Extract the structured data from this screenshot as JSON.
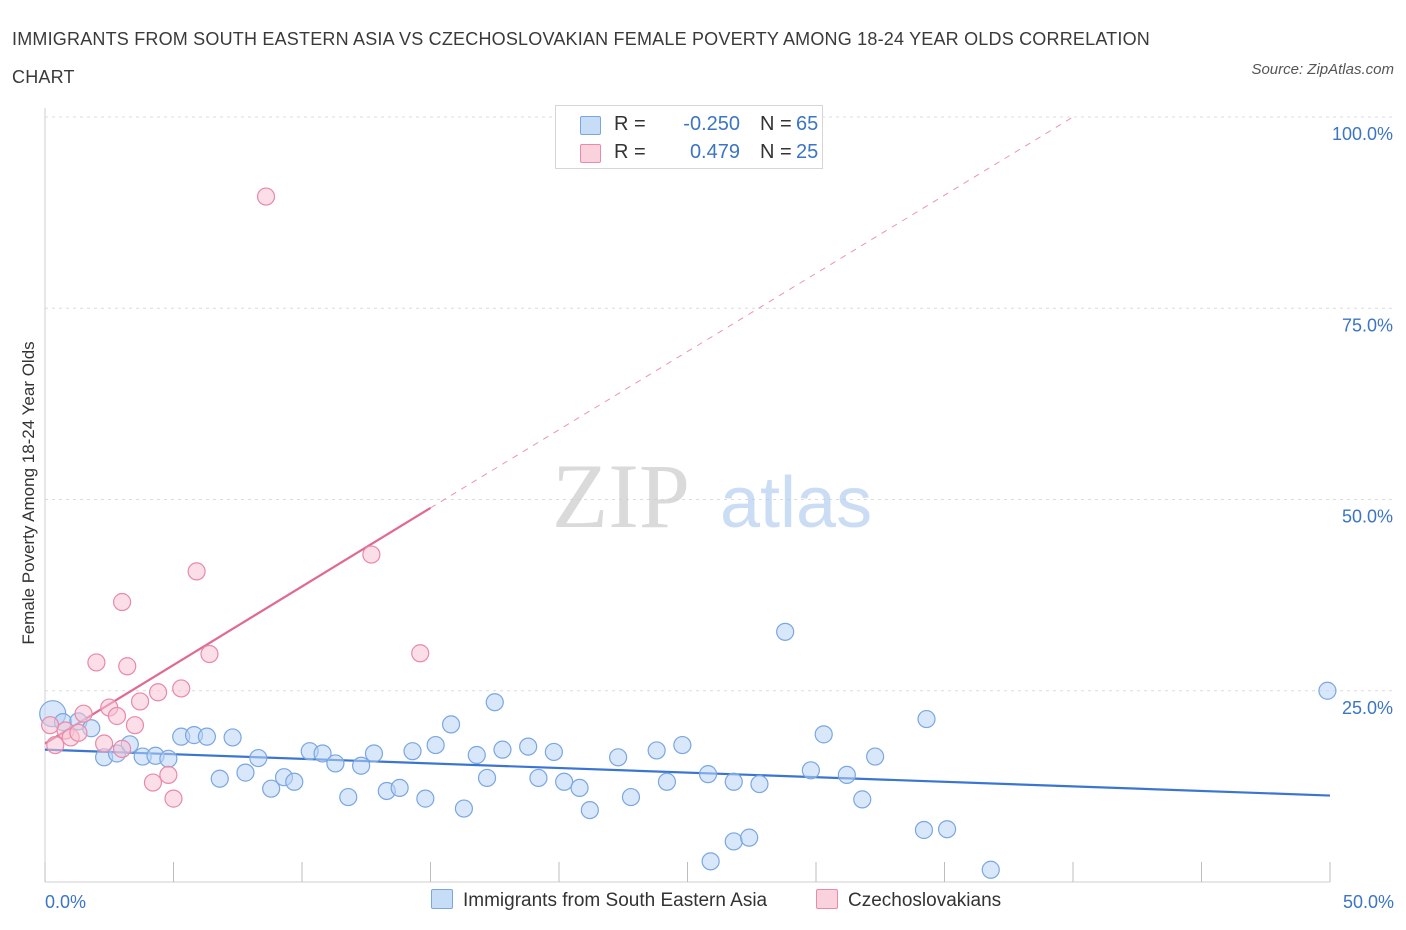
{
  "title": "IMMIGRANTS FROM SOUTH EASTERN ASIA VS CZECHOSLOVAKIAN FEMALE POVERTY AMONG 18-24 YEAR OLDS CORRELATION CHART",
  "source": "Source: ZipAtlas.com",
  "watermark": {
    "zip": "ZIP",
    "atlas": "atlas"
  },
  "colors": {
    "blue_fill": "#b9d3f5",
    "blue_stroke": "#7aa7e0",
    "blue_line": "#3b75d4",
    "pink_fill": "#f8c3d3",
    "pink_stroke": "#e88aa8",
    "pink_line": "#e06a90",
    "tick_text": "#3b75c4",
    "grid": "#dcdcdc"
  },
  "legend": {
    "rows": [
      {
        "series": "blue",
        "r_label": "R =",
        "r_value": "-0.250",
        "n_label": "N =",
        "n_value": "65"
      },
      {
        "series": "pink",
        "r_label": "R =",
        "r_value": "0.479",
        "n_label": "N =",
        "n_value": "25"
      }
    ]
  },
  "bottom_legend": [
    {
      "series": "blue",
      "label": "Immigrants from South Eastern Asia"
    },
    {
      "series": "pink",
      "label": "Czechoslovakians"
    }
  ],
  "chart_data": {
    "type": "scatter",
    "title": "IMMIGRANTS FROM SOUTH EASTERN ASIA VS CZECHOSLOVAKIAN FEMALE POVERTY AMONG 18-24 YEAR OLDS CORRELATION CHART",
    "xlabel": "",
    "ylabel": "Female Poverty Among 18-24 Year Olds",
    "xlim": [
      0,
      50
    ],
    "ylim": [
      0,
      100
    ],
    "x_tick_labels": [
      {
        "value": 0,
        "label": "0.0%"
      },
      {
        "value": 50,
        "label": "50.0%"
      }
    ],
    "y_tick_labels": [
      {
        "value": 100,
        "label": "100.0%"
      },
      {
        "value": 75,
        "label": "75.0%"
      },
      {
        "value": 50,
        "label": "50.0%"
      },
      {
        "value": 25,
        "label": "25.0%"
      }
    ],
    "grid": true,
    "legend_position": "top-center",
    "series": [
      {
        "name": "Immigrants from South Eastern Asia",
        "color": "#b9d3f5",
        "trend": {
          "x": [
            0,
            50
          ],
          "y": [
            17.3,
            11.3
          ],
          "r": -0.25,
          "n": 65
        },
        "points": [
          [
            0.3,
            22.0
          ],
          [
            0.7,
            20.9
          ],
          [
            1.3,
            21.0
          ],
          [
            1.8,
            20.1
          ],
          [
            2.3,
            16.3
          ],
          [
            2.8,
            16.8
          ],
          [
            3.3,
            18.0
          ],
          [
            3.8,
            16.4
          ],
          [
            4.3,
            16.5
          ],
          [
            4.8,
            16.1
          ],
          [
            5.3,
            19.0
          ],
          [
            5.8,
            19.2
          ],
          [
            6.3,
            19.0
          ],
          [
            6.8,
            13.5
          ],
          [
            7.3,
            18.9
          ],
          [
            7.8,
            14.3
          ],
          [
            8.3,
            16.2
          ],
          [
            8.8,
            12.2
          ],
          [
            9.3,
            13.7
          ],
          [
            9.7,
            13.1
          ],
          [
            10.3,
            17.1
          ],
          [
            10.8,
            16.8
          ],
          [
            11.3,
            15.5
          ],
          [
            11.8,
            11.1
          ],
          [
            12.3,
            15.2
          ],
          [
            12.8,
            16.8
          ],
          [
            13.3,
            11.9
          ],
          [
            13.8,
            12.3
          ],
          [
            14.3,
            17.1
          ],
          [
            14.8,
            10.9
          ],
          [
            15.2,
            17.9
          ],
          [
            15.8,
            20.6
          ],
          [
            16.3,
            9.6
          ],
          [
            16.8,
            16.6
          ],
          [
            17.2,
            13.6
          ],
          [
            17.5,
            23.5
          ],
          [
            17.8,
            17.3
          ],
          [
            18.8,
            17.7
          ],
          [
            19.2,
            13.6
          ],
          [
            19.8,
            17.0
          ],
          [
            20.2,
            13.1
          ],
          [
            20.8,
            12.3
          ],
          [
            21.2,
            9.4
          ],
          [
            22.3,
            16.3
          ],
          [
            22.8,
            11.1
          ],
          [
            23.8,
            17.2
          ],
          [
            24.2,
            13.1
          ],
          [
            24.8,
            17.9
          ],
          [
            25.8,
            14.1
          ],
          [
            25.9,
            2.7
          ],
          [
            26.8,
            13.1
          ],
          [
            26.8,
            5.3
          ],
          [
            27.4,
            5.8
          ],
          [
            27.8,
            12.8
          ],
          [
            28.8,
            32.7
          ],
          [
            29.8,
            14.6
          ],
          [
            30.3,
            19.3
          ],
          [
            31.2,
            14.0
          ],
          [
            31.8,
            10.8
          ],
          [
            32.3,
            16.4
          ],
          [
            34.2,
            6.8
          ],
          [
            34.3,
            21.3
          ],
          [
            35.1,
            6.9
          ],
          [
            36.8,
            1.6
          ],
          [
            49.9,
            25.0
          ]
        ]
      },
      {
        "name": "Czechoslovakians",
        "color": "#f8c3d3",
        "trend": {
          "x": [
            0,
            15
          ],
          "y": [
            18.1,
            48.9
          ],
          "r": 0.479,
          "n": 25,
          "dashed_extension_to": [
            40,
            100
          ]
        },
        "points": [
          [
            0.2,
            20.5
          ],
          [
            0.4,
            17.9
          ],
          [
            0.8,
            19.8
          ],
          [
            1.0,
            18.9
          ],
          [
            1.3,
            19.5
          ],
          [
            1.5,
            22.0
          ],
          [
            2.0,
            28.7
          ],
          [
            2.3,
            18.1
          ],
          [
            2.5,
            22.8
          ],
          [
            2.8,
            21.7
          ],
          [
            3.0,
            17.4
          ],
          [
            3.0,
            36.6
          ],
          [
            3.2,
            28.2
          ],
          [
            3.5,
            20.5
          ],
          [
            3.7,
            23.6
          ],
          [
            4.2,
            13.0
          ],
          [
            4.4,
            24.8
          ],
          [
            4.8,
            14.0
          ],
          [
            5.0,
            10.9
          ],
          [
            5.3,
            25.3
          ],
          [
            5.9,
            40.6
          ],
          [
            6.4,
            29.8
          ],
          [
            8.6,
            89.6
          ],
          [
            12.7,
            42.8
          ],
          [
            14.6,
            29.9
          ]
        ]
      }
    ]
  }
}
